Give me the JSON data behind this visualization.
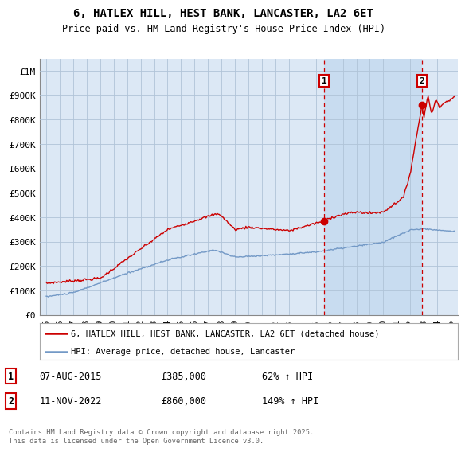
{
  "title": "6, HATLEX HILL, HEST BANK, LANCASTER, LA2 6ET",
  "subtitle": "Price paid vs. HM Land Registry's House Price Index (HPI)",
  "ylabel_ticks": [
    "£0",
    "£100K",
    "£200K",
    "£300K",
    "£400K",
    "£500K",
    "£600K",
    "£700K",
    "£800K",
    "£900K",
    "£1M"
  ],
  "ytick_values": [
    0,
    100000,
    200000,
    300000,
    400000,
    500000,
    600000,
    700000,
    800000,
    900000,
    1000000
  ],
  "ylim": [
    0,
    1050000
  ],
  "xlim_start": 1994.5,
  "xlim_end": 2025.5,
  "xticks": [
    1995,
    1996,
    1997,
    1998,
    1999,
    2000,
    2001,
    2002,
    2003,
    2004,
    2005,
    2006,
    2007,
    2008,
    2009,
    2010,
    2011,
    2012,
    2013,
    2014,
    2015,
    2016,
    2017,
    2018,
    2019,
    2020,
    2021,
    2022,
    2023,
    2024,
    2025
  ],
  "sale1_x": 2015.6,
  "sale1_y": 385000,
  "sale2_x": 2022.87,
  "sale2_y": 860000,
  "sale1_date": "07-AUG-2015",
  "sale1_price": "£385,000",
  "sale1_hpi": "62% ↑ HPI",
  "sale2_date": "11-NOV-2022",
  "sale2_price": "£860,000",
  "sale2_hpi": "149% ↑ HPI",
  "legend_house": "6, HATLEX HILL, HEST BANK, LANCASTER, LA2 6ET (detached house)",
  "legend_hpi": "HPI: Average price, detached house, Lancaster",
  "footnote": "Contains HM Land Registry data © Crown copyright and database right 2025.\nThis data is licensed under the Open Government Licence v3.0.",
  "house_color": "#cc0000",
  "hpi_color": "#7399c6",
  "background_color": "#dce8f5",
  "highlight_color": "#c8dcf0",
  "grid_color": "#b0c4d8",
  "marker_box_color": "#cc0000",
  "title_fontsize": 10,
  "subtitle_fontsize": 8.5
}
